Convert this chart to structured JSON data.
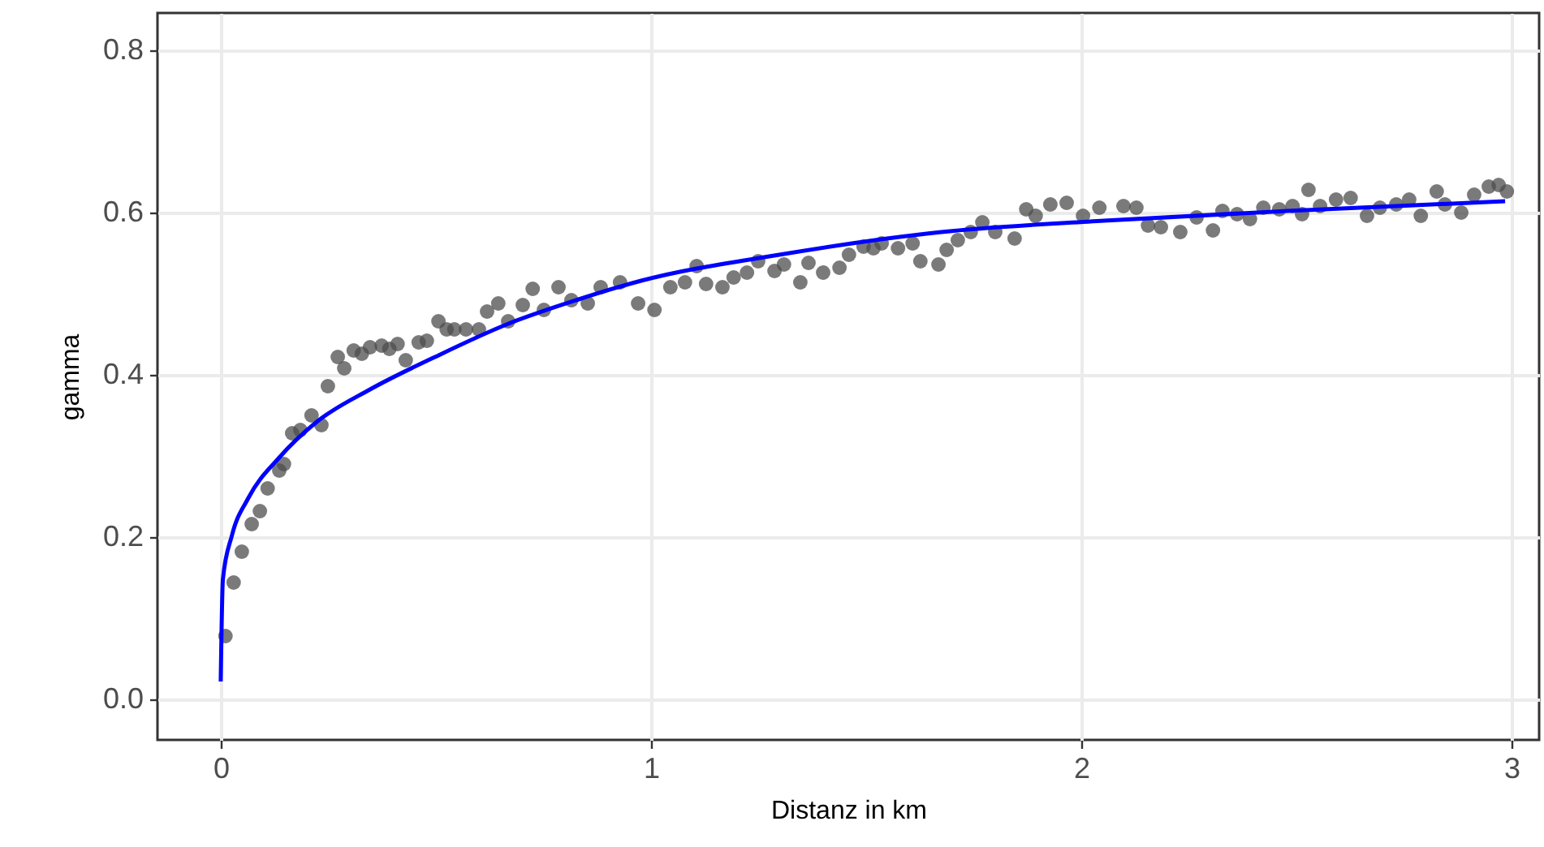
{
  "chart_data": {
    "type": "scatter",
    "xlabel": "Distanz in km",
    "ylabel": "gamma",
    "xlim": [
      -0.147,
      3.064
    ],
    "ylim": [
      -0.05,
      0.846
    ],
    "xticks": [
      0,
      1,
      2,
      3
    ],
    "yticks": [
      {
        "value": 0,
        "label": "0.0"
      },
      {
        "value": 0.2,
        "label": "0.2"
      },
      {
        "value": 0.4,
        "label": "0.4"
      },
      {
        "value": 0.6,
        "label": "0.6"
      },
      {
        "value": 0.8,
        "label": "0.8"
      }
    ],
    "grid": true,
    "series": [
      {
        "color": "#4d4d4d",
        "marker": "circle",
        "x": [
          0.011,
          0.03,
          0.049,
          0.072,
          0.091,
          0.109,
          0.136,
          0.147,
          0.166,
          0.185,
          0.211,
          0.234,
          0.249,
          0.272,
          0.287,
          0.309,
          0.328,
          0.347,
          0.374,
          0.392,
          0.411,
          0.43,
          0.46,
          0.479,
          0.506,
          0.525,
          0.543,
          0.57,
          0.6,
          0.619,
          0.645,
          0.668,
          0.702,
          0.725,
          0.751,
          0.785,
          0.815,
          0.853,
          0.883,
          0.928,
          0.97,
          1.008,
          1.045,
          1.079,
          1.106,
          1.128,
          1.166,
          1.192,
          1.223,
          1.249,
          1.287,
          1.309,
          1.347,
          1.366,
          1.4,
          1.438,
          1.46,
          1.494,
          1.517,
          1.536,
          1.574,
          1.608,
          1.626,
          1.668,
          1.687,
          1.713,
          1.743,
          1.77,
          1.8,
          1.845,
          1.872,
          1.894,
          1.928,
          1.966,
          2.004,
          2.042,
          2.098,
          2.128,
          2.155,
          2.185,
          2.23,
          2.268,
          2.306,
          2.328,
          2.362,
          2.392,
          2.423,
          2.46,
          2.491,
          2.513,
          2.528,
          2.555,
          2.592,
          2.626,
          2.664,
          2.694,
          2.732,
          2.762,
          2.789,
          2.826,
          2.845,
          2.883,
          2.913,
          2.947,
          2.97,
          2.989
        ],
        "values": [
          0.078,
          0.144,
          0.182,
          0.216,
          0.232,
          0.26,
          0.282,
          0.29,
          0.328,
          0.332,
          0.35,
          0.338,
          0.386,
          0.422,
          0.408,
          0.43,
          0.426,
          0.434,
          0.436,
          0.432,
          0.438,
          0.418,
          0.44,
          0.442,
          0.466,
          0.456,
          0.456,
          0.456,
          0.456,
          0.478,
          0.488,
          0.466,
          0.486,
          0.506,
          0.48,
          0.508,
          0.492,
          0.488,
          0.508,
          0.514,
          0.488,
          0.48,
          0.508,
          0.514,
          0.534,
          0.512,
          0.508,
          0.52,
          0.526,
          0.54,
          0.528,
          0.536,
          0.514,
          0.538,
          0.526,
          0.532,
          0.548,
          0.558,
          0.556,
          0.562,
          0.556,
          0.562,
          0.54,
          0.536,
          0.554,
          0.566,
          0.576,
          0.588,
          0.576,
          0.568,
          0.604,
          0.596,
          0.61,
          0.612,
          0.596,
          0.606,
          0.608,
          0.606,
          0.584,
          0.582,
          0.576,
          0.594,
          0.578,
          0.602,
          0.598,
          0.592,
          0.606,
          0.604,
          0.608,
          0.598,
          0.628,
          0.608,
          0.616,
          0.618,
          0.596,
          0.606,
          0.61,
          0.616,
          0.596,
          0.626,
          0.61,
          0.6,
          0.622,
          0.632,
          0.634,
          0.626
        ]
      },
      {
        "type": "line",
        "color": "#0000ff",
        "x": [
          0,
          0.005,
          0.026,
          0.064,
          0.136,
          0.223,
          0.347,
          0.498,
          0.664,
          0.826,
          0.977,
          1.298,
          1.675,
          2.053,
          2.479,
          2.985
        ],
        "values": [
          0.022,
          0.148,
          0.202,
          0.248,
          0.298,
          0.342,
          0.382,
          0.422,
          0.462,
          0.492,
          0.516,
          0.548,
          0.576,
          0.59,
          0.602,
          0.614
        ]
      }
    ]
  }
}
